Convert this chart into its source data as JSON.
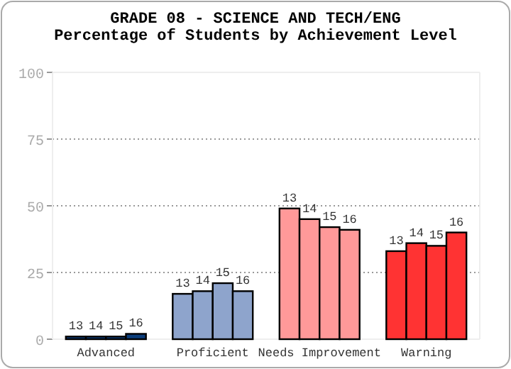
{
  "chart_data": {
    "type": "bar",
    "title": "GRADE 08 - SCIENCE AND TECH/ENG",
    "subtitle": "Percentage of Students by Achievement Level",
    "categories": [
      "Advanced",
      "Proficient",
      "Needs Improvement",
      "Warning"
    ],
    "series": [
      {
        "name": "13",
        "colors": [
          "#0b3d7a",
          "#8ea4cc",
          "#ff9999",
          "#ff3333"
        ],
        "values": [
          1,
          17,
          49,
          33
        ]
      },
      {
        "name": "14",
        "colors": [
          "#0b3d7a",
          "#8ea4cc",
          "#ff9999",
          "#ff3333"
        ],
        "values": [
          1,
          18,
          45,
          36
        ]
      },
      {
        "name": "15",
        "colors": [
          "#0b3d7a",
          "#8ea4cc",
          "#ff9999",
          "#ff3333"
        ],
        "values": [
          1,
          21,
          42,
          35
        ]
      },
      {
        "name": "16",
        "colors": [
          "#0b3d7a",
          "#8ea4cc",
          "#ff9999",
          "#ff3333"
        ],
        "values": [
          2,
          18,
          41,
          40
        ]
      }
    ],
    "ylim": [
      0,
      100
    ],
    "yticks": [
      0,
      25,
      50,
      75,
      100
    ],
    "grid": "y"
  }
}
